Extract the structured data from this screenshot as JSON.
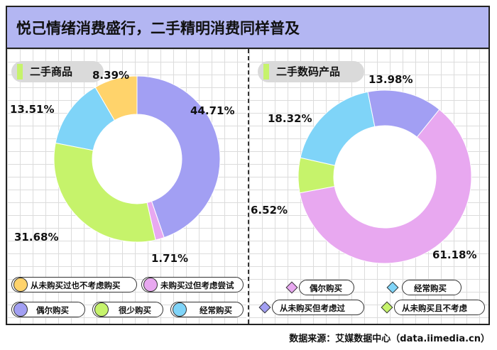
{
  "title": "悦己情绪消费盛行，二手精明消费同样普及",
  "source": "数据来源：艾媒数据中心（data.iimedia.cn）",
  "left_panel": {
    "label": "二手商品",
    "legend": [
      {
        "label": "从未购买过也不考虑购买",
        "color": "#ffd36b"
      },
      {
        "label": "未购买过但考虑尝试",
        "color": "#e8a8f0"
      },
      {
        "label": "偶尔购买",
        "color": "#a29ff3"
      },
      {
        "label": "很少购买",
        "color": "#c6f36b"
      },
      {
        "label": "经常购买",
        "color": "#7fd4f8"
      }
    ]
  },
  "right_panel": {
    "label": "二手数码产品",
    "legend": [
      {
        "label": "偶尔购买",
        "color": "#e8a8f0"
      },
      {
        "label": "经常购买",
        "color": "#7fd4f8"
      },
      {
        "label": "从未购买但考虑过",
        "color": "#a29ff3"
      },
      {
        "label": "从未购买且不考虑",
        "color": "#c6f36b"
      }
    ]
  },
  "chart_data": [
    {
      "type": "pie",
      "title": "二手商品",
      "slices": [
        {
          "label": "偶尔购买",
          "value": 44.71,
          "value_label": "44.71%",
          "color": "#a29ff3"
        },
        {
          "label": "未购买过但考虑尝试",
          "value": 1.71,
          "value_label": "1.71%",
          "color": "#e8a8f0"
        },
        {
          "label": "很少购买",
          "value": 31.68,
          "value_label": "31.68%",
          "color": "#c6f36b"
        },
        {
          "label": "经常购买",
          "value": 13.51,
          "value_label": "13.51%",
          "color": "#7fd4f8"
        },
        {
          "label": "从未购买过也不考虑购买",
          "value": 8.39,
          "value_label": "8.39%",
          "color": "#ffd36b"
        }
      ]
    },
    {
      "type": "pie",
      "title": "二手数码产品",
      "slices": [
        {
          "label": "偶尔购买",
          "value": 61.18,
          "value_label": "61.18%",
          "color": "#e8a8f0"
        },
        {
          "label": "从未购买且不考虑",
          "value": 6.52,
          "value_label": "6.52%",
          "color": "#c6f36b"
        },
        {
          "label": "经常购买",
          "value": 18.32,
          "value_label": "18.32%",
          "color": "#7fd4f8"
        },
        {
          "label": "从未购买但考虑过",
          "value": 13.98,
          "value_label": "13.98%",
          "color": "#a29ff3"
        }
      ]
    }
  ]
}
